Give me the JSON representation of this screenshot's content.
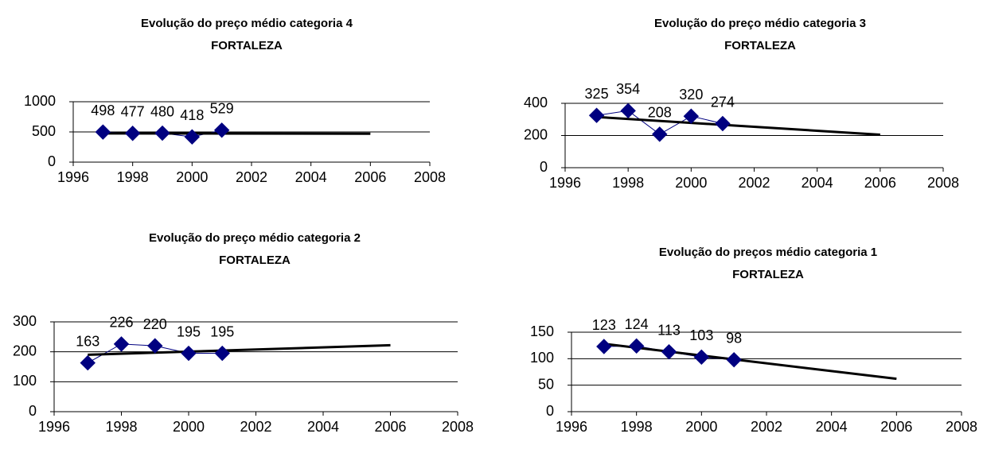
{
  "chart_data": [
    {
      "type": "line",
      "title": "Evolução do preço médio categoria 4",
      "subtitle": "FORTALEZA",
      "x": [
        1997,
        1998,
        1999,
        2000,
        2001
      ],
      "series": [
        {
          "color": "#000080",
          "values": [
            498,
            477,
            480,
            418,
            529
          ]
        }
      ],
      "trend": {
        "x": [
          1997,
          2006
        ],
        "values": [
          475,
          470
        ],
        "color": "#000000"
      },
      "xlim": [
        1996,
        2008
      ],
      "xticks": [
        1996,
        1998,
        2000,
        2002,
        2004,
        2006,
        2008
      ],
      "ylim": [
        0,
        1000
      ],
      "yticks": [
        0,
        500,
        1000
      ],
      "grid": true
    },
    {
      "type": "line",
      "title": "Evolução do preço médio categoria 3",
      "subtitle": "FORTALEZA",
      "x": [
        1997,
        1998,
        1999,
        2000,
        2001
      ],
      "series": [
        {
          "color": "#000080",
          "values": [
            325,
            354,
            208,
            320,
            274
          ]
        }
      ],
      "trend": {
        "x": [
          1997,
          2006
        ],
        "values": [
          315,
          205
        ],
        "color": "#000000"
      },
      "xlim": [
        1996,
        2008
      ],
      "xticks": [
        1996,
        1998,
        2000,
        2002,
        2004,
        2006,
        2008
      ],
      "ylim": [
        0,
        400
      ],
      "yticks": [
        0,
        200,
        400
      ],
      "grid": true
    },
    {
      "type": "line",
      "title": "Evolução do preço médio categoria 2",
      "subtitle": "FORTALEZA",
      "x": [
        1997,
        1998,
        1999,
        2000,
        2001
      ],
      "series": [
        {
          "color": "#000080",
          "values": [
            163,
            226,
            220,
            195,
            195
          ]
        }
      ],
      "trend": {
        "x": [
          1997,
          2006
        ],
        "values": [
          190,
          222
        ],
        "color": "#000000"
      },
      "xlim": [
        1996,
        2008
      ],
      "xticks": [
        1996,
        1998,
        2000,
        2002,
        2004,
        2006,
        2008
      ],
      "ylim": [
        0,
        300
      ],
      "yticks": [
        0,
        100,
        200,
        300
      ],
      "grid": true
    },
    {
      "type": "line",
      "title": "Evolução do preços médio categoria 1",
      "subtitle": "FORTALEZA",
      "x": [
        1997,
        1998,
        1999,
        2000,
        2001
      ],
      "series": [
        {
          "color": "#000080",
          "values": [
            123,
            124,
            113,
            103,
            98
          ]
        }
      ],
      "trend": {
        "x": [
          1997,
          2006
        ],
        "values": [
          128,
          62
        ],
        "color": "#000000"
      },
      "xlim": [
        1996,
        2008
      ],
      "xticks": [
        1996,
        1998,
        2000,
        2002,
        2004,
        2006,
        2008
      ],
      "ylim": [
        0,
        150
      ],
      "yticks": [
        0,
        50,
        100,
        150
      ],
      "grid": true
    }
  ]
}
